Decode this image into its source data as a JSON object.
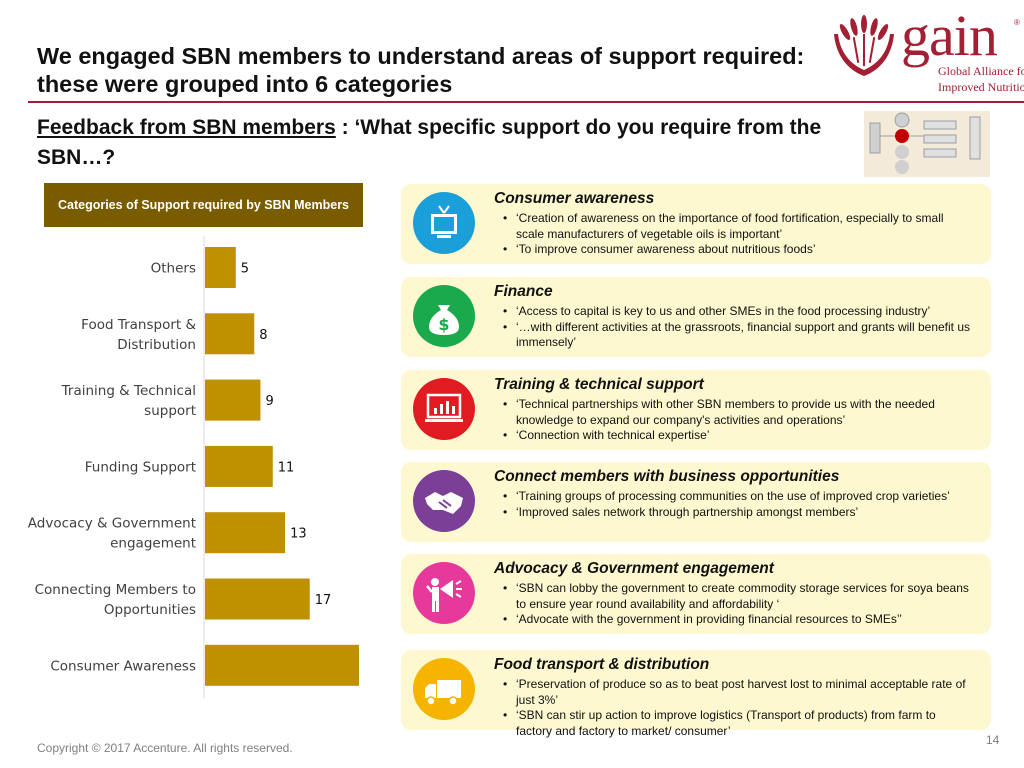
{
  "title": "We engaged SBN members to understand areas of support required: these were grouped into 6 categories",
  "logo": {
    "word": "gain",
    "reg": "®",
    "line1": "Global Alliance for",
    "line2": "Improved Nutrition"
  },
  "subtitle": {
    "underlined": "Feedback from SBN members",
    "rest": " : ‘What specific support do you require from the SBN…?"
  },
  "chart_header": "Categories of Support required by SBN Members",
  "chart_data": {
    "type": "bar",
    "orientation": "horizontal",
    "categories": [
      "Others",
      "Food Transport & Distribution",
      "Training & Technical support",
      "Funding Support",
      "Advocacy & Government engagement",
      "Connecting Members to Opportunities",
      "Consumer Awareness"
    ],
    "category_lines": [
      [
        "Others"
      ],
      [
        "Food Transport &",
        "Distribution"
      ],
      [
        "Training & Technical",
        "support"
      ],
      [
        "Funding Support"
      ],
      [
        "Advocacy & Government",
        "engagement"
      ],
      [
        "Connecting Members to",
        "Opportunities"
      ],
      [
        "Consumer Awareness"
      ]
    ],
    "values": [
      5,
      8,
      9,
      11,
      13,
      17,
      25
    ],
    "value_labels": [
      "5",
      "8",
      "9",
      "11",
      "13",
      "17",
      ""
    ],
    "xlim": [
      0,
      25
    ],
    "bar_color": "#bf9000",
    "grid": false
  },
  "cards": [
    {
      "title": "Consumer awareness",
      "icon": "tv-icon",
      "color": "#1a9fd8",
      "bullets": [
        "‘Creation of awareness on the importance of food fortification, especially to small scale manufacturers of vegetable oils is important’",
        "‘To improve consumer awareness about nutritious foods’"
      ]
    },
    {
      "title": "Finance",
      "icon": "money-bag-icon",
      "color": "#1aaa4b",
      "bullets": [
        "‘Access to capital  is key to us and other SMEs in the food processing industry’",
        "‘…with different activities at the grassroots, financial support and grants will benefit us immensely’"
      ]
    },
    {
      "title": "Training & technical support",
      "icon": "presentation-icon",
      "color": "#e01b22",
      "bullets": [
        "‘Technical partnerships with other SBN members to provide us with the needed knowledge to expand our company's activities and operations’",
        "‘Connection with technical expertise’"
      ]
    },
    {
      "title": "Connect members with business opportunities",
      "icon": "handshake-icon",
      "color": "#7b3f98",
      "bullets": [
        "‘Training groups of processing communities on the use of improved crop varieties’",
        "‘Improved sales network through partnership amongst members’"
      ]
    },
    {
      "title": "Advocacy & Government engagement",
      "icon": "megaphone-icon",
      "color": "#e6399b",
      "bullets": [
        "‘SBN can lobby the government to create commodity storage services for soya beans to ensure year round availability and affordability ‘",
        "‘Advocate with the government in providing financial resources to SMEs’’"
      ]
    },
    {
      "title": "Food transport & distribution",
      "icon": "truck-icon",
      "color": "#f5b400",
      "bullets": [
        "‘Preservation of produce so as to beat post harvest lost to minimal acceptable rate of just 3%’",
        "‘SBN can stir up action to improve logistics (Transport of products) from farm to factory and factory to market/ consumer’"
      ]
    }
  ],
  "copyright": "Copyright © 2017 Accenture. All rights reserved.",
  "page_number": "14"
}
